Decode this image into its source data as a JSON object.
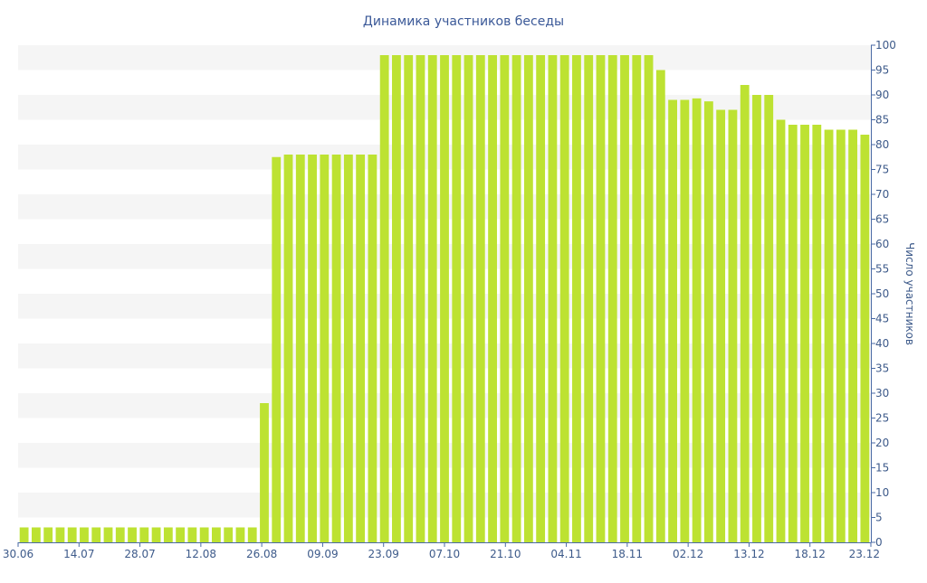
{
  "chart_data": {
    "type": "bar",
    "title": "Динамика участников беседы",
    "xlabel": "",
    "ylabel": "Число участников",
    "ylim": [
      0,
      100
    ],
    "yticks": [
      0,
      5,
      10,
      15,
      20,
      25,
      30,
      35,
      40,
      45,
      50,
      55,
      60,
      65,
      70,
      75,
      80,
      85,
      90,
      95,
      100
    ],
    "grid": "alternating horizontal bands",
    "legend": "none",
    "bar_color": "#bde232",
    "band_color": "#f5f5f5",
    "text_color": "#3d5a8a",
    "x_tick_labels": [
      "30.06",
      "14.07",
      "28.07",
      "12.08",
      "26.08",
      "09.09",
      "23.09",
      "07.10",
      "21.10",
      "04.11",
      "18.11",
      "02.12",
      "13.12",
      "18.12",
      "23.12"
    ],
    "values": [
      3,
      3,
      3,
      3,
      3,
      3,
      3,
      3,
      3,
      3,
      3,
      3,
      3,
      3,
      3,
      3,
      3,
      3,
      3,
      3,
      28,
      77.5,
      78,
      78,
      78,
      78,
      78,
      78,
      78,
      78,
      98,
      98,
      98,
      98,
      98,
      98,
      98,
      98,
      98,
      98,
      98,
      98,
      98,
      98,
      98,
      98,
      98,
      98,
      98,
      98,
      98,
      98,
      98,
      95,
      89,
      89,
      89.3,
      88.7,
      87,
      87,
      92,
      90,
      90,
      85,
      84,
      84,
      84,
      83,
      83,
      83,
      82
    ]
  }
}
